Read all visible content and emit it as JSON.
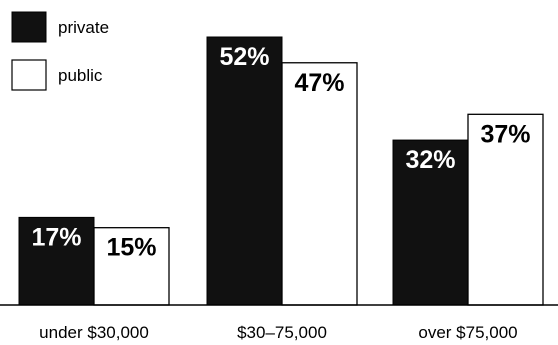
{
  "chart_data": {
    "type": "bar",
    "categories": [
      "under $30,000",
      "$30–75,000",
      "over $75,000"
    ],
    "series": [
      {
        "name": "private",
        "values": [
          17,
          52,
          32
        ],
        "labels": [
          "17%",
          "52%",
          "32%"
        ],
        "color": "#111111"
      },
      {
        "name": "public",
        "values": [
          15,
          47,
          37
        ],
        "labels": [
          "15%",
          "47%",
          "37%"
        ],
        "color": "#ffffff"
      }
    ],
    "unit": "%",
    "ylim": [
      0,
      55
    ],
    "legend_position": "top-left",
    "grid": false,
    "title": "",
    "xlabel": "",
    "ylabel": ""
  }
}
